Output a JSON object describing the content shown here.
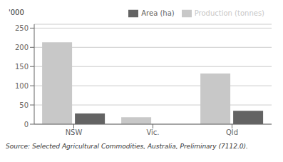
{
  "chart_data": {
    "type": "bar",
    "categories": [
      "NSW",
      "Vic.",
      "Qld"
    ],
    "series": [
      {
        "name": "Production (tonnes)",
        "color": "#c8c8c8",
        "values": [
          213,
          18,
          132
        ]
      },
      {
        "name": "Area (ha)",
        "color": "#636363",
        "values": [
          28,
          0,
          35
        ]
      }
    ],
    "ylabel": "'000",
    "source": "Source: Selected Agricultural Commodities, Australia, Preliminary (7112.0).",
    "ylim": [
      0,
      260
    ],
    "yticks": [
      0,
      50,
      100,
      150,
      200,
      250
    ],
    "grid": true,
    "legend": "top"
  }
}
